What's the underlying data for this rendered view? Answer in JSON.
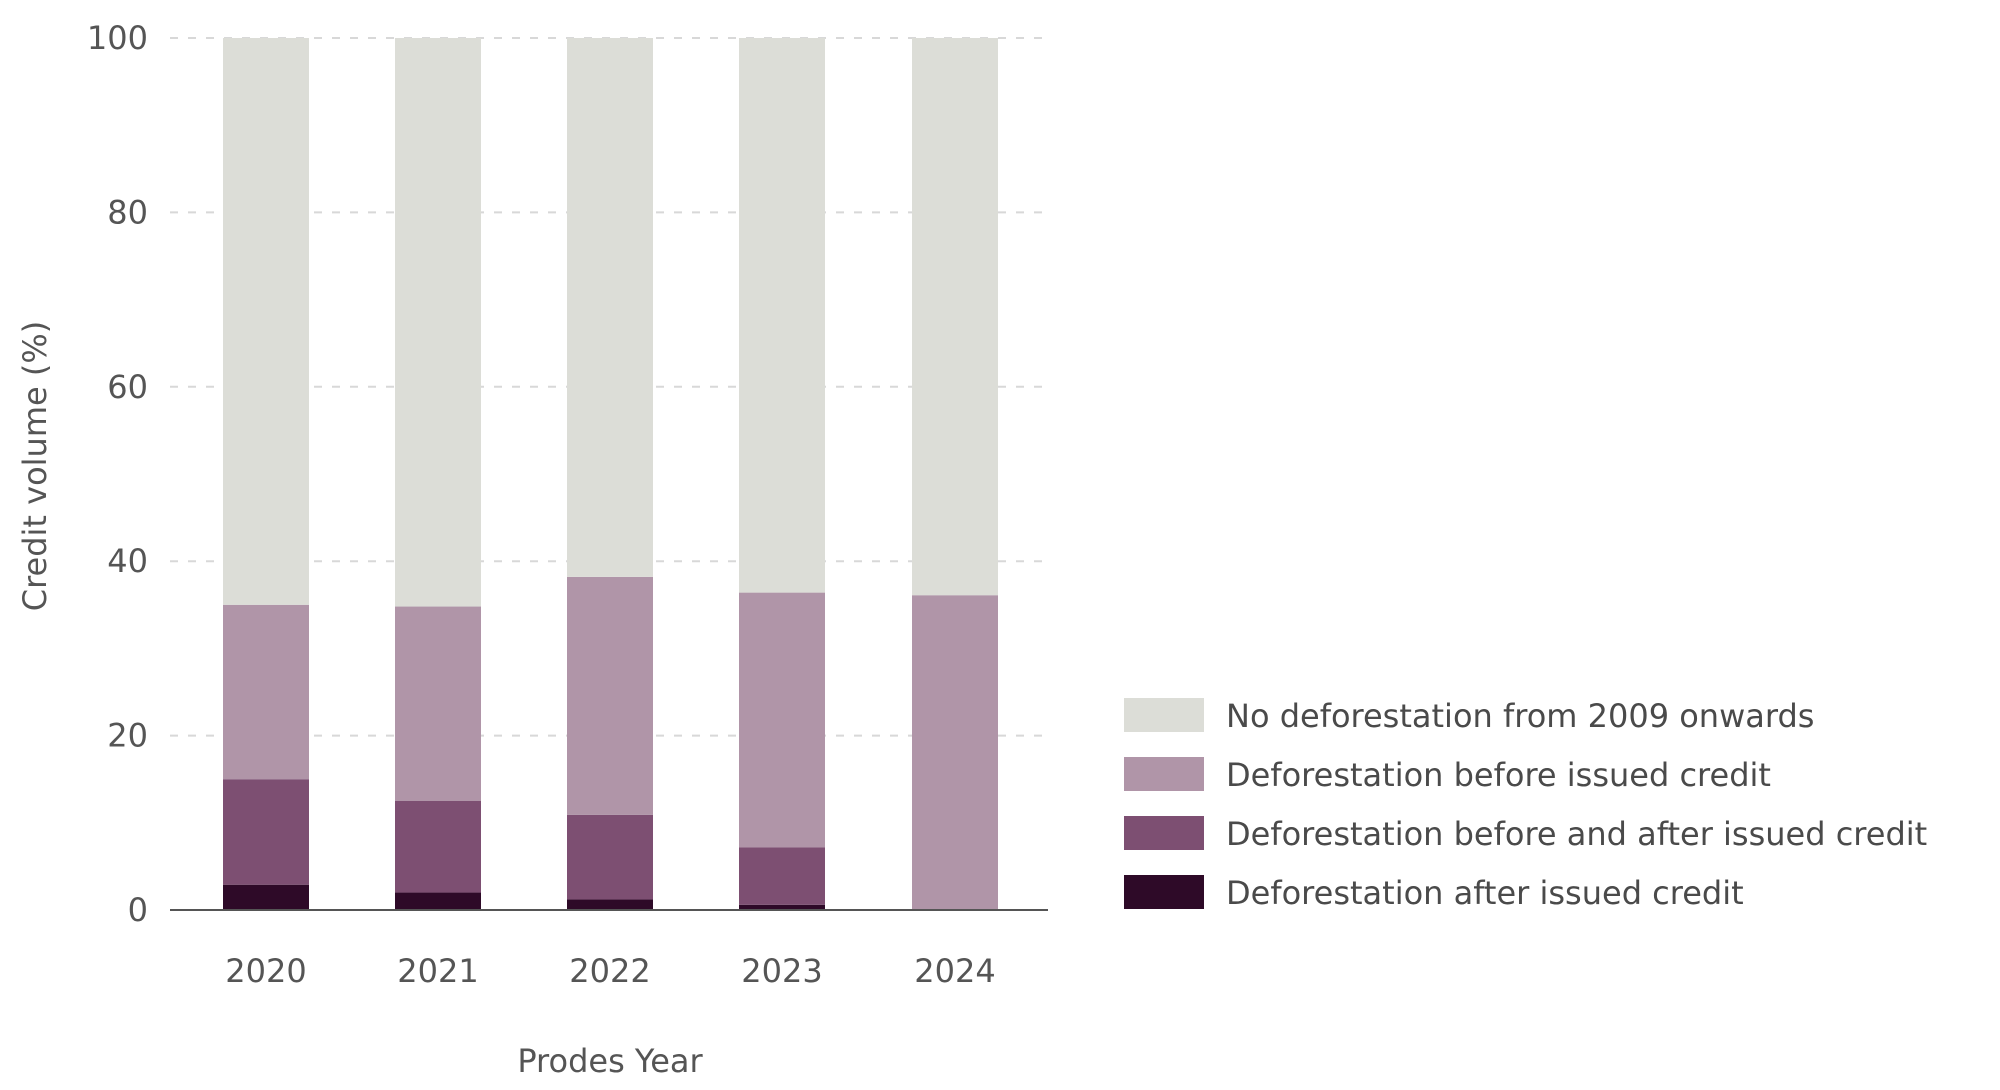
{
  "chart_data": {
    "type": "bar",
    "stacked": true,
    "categories": [
      "2020",
      "2021",
      "2022",
      "2023",
      "2024"
    ],
    "series": [
      {
        "name": "Deforestation after issued credit",
        "color": "#2e0a28",
        "values": [
          2.9,
          2.0,
          1.2,
          0.6,
          0.0
        ]
      },
      {
        "name": "Deforestation before and after issued credit",
        "color": "#7d4f72",
        "values": [
          12.1,
          10.5,
          9.7,
          6.6,
          0.0
        ]
      },
      {
        "name": "Deforestation before issued credit",
        "color": "#b095a8",
        "values": [
          20.0,
          22.3,
          27.3,
          29.2,
          36.1
        ]
      },
      {
        "name": "No deforestation from 2009 onwards",
        "color": "#dcddd7",
        "values": [
          65.0,
          65.2,
          61.8,
          63.6,
          63.9
        ]
      }
    ],
    "legend_order": [
      "No deforestation from 2009 onwards",
      "Deforestation before issued credit",
      "Deforestation before and after issued credit",
      "Deforestation after issued credit"
    ],
    "xlabel": "Prodes Year",
    "ylabel": "Credit volume (%)",
    "ylim": [
      0,
      100
    ],
    "yticks": [
      0,
      20,
      40,
      60,
      80,
      100
    ],
    "grid": "horizontal dashed",
    "legend_position": "right"
  }
}
